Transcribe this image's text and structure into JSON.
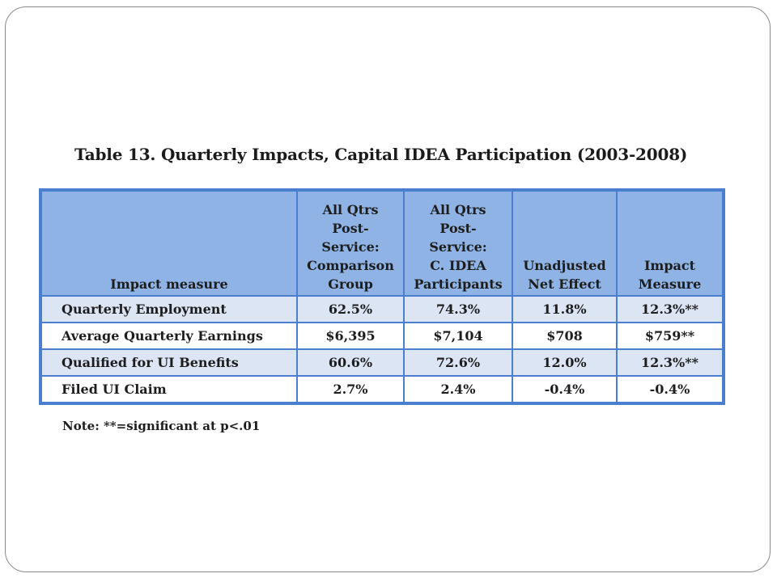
{
  "title": "Table 13.  Quarterly Impacts, Capital IDEA Participation (2003-2008)",
  "columns": [
    {
      "lines": [
        "Impact measure"
      ]
    },
    {
      "lines": [
        "All Qtrs",
        "Post-",
        "Service:",
        "Comparison",
        "Group"
      ]
    },
    {
      "lines": [
        "All Qtrs",
        "Post-",
        "Service:",
        "C. IDEA",
        "Participants"
      ]
    },
    {
      "lines": [
        "Unadjusted",
        "Net Effect"
      ]
    },
    {
      "lines": [
        "Impact",
        "Measure"
      ]
    }
  ],
  "rows": [
    {
      "measure": "Quarterly Employment",
      "comparison": "62.5%",
      "participants": "74.3%",
      "unadjusted": "11.8%",
      "impact": "12.3%**",
      "shaded": true
    },
    {
      "measure": "Average Quarterly Earnings",
      "comparison": "$6,395",
      "participants": "$7,104",
      "unadjusted": "$708",
      "impact": "$759**",
      "shaded": false
    },
    {
      "measure": "Qualified for UI Benefits",
      "comparison": "60.6%",
      "participants": "72.6%",
      "unadjusted": "12.0%",
      "impact": "12.3%**",
      "shaded": true
    },
    {
      "measure": "Filed UI Claim",
      "comparison": "2.7%",
      "participants": "2.4%",
      "unadjusted": "-0.4%",
      "impact": "-0.4%",
      "shaded": false
    }
  ],
  "note": "Note: **=significant at p<.01",
  "colors": {
    "header_fill": "#8eb3e4",
    "shaded_row_fill": "#dbe5f4",
    "border": "#4a7fd0"
  }
}
